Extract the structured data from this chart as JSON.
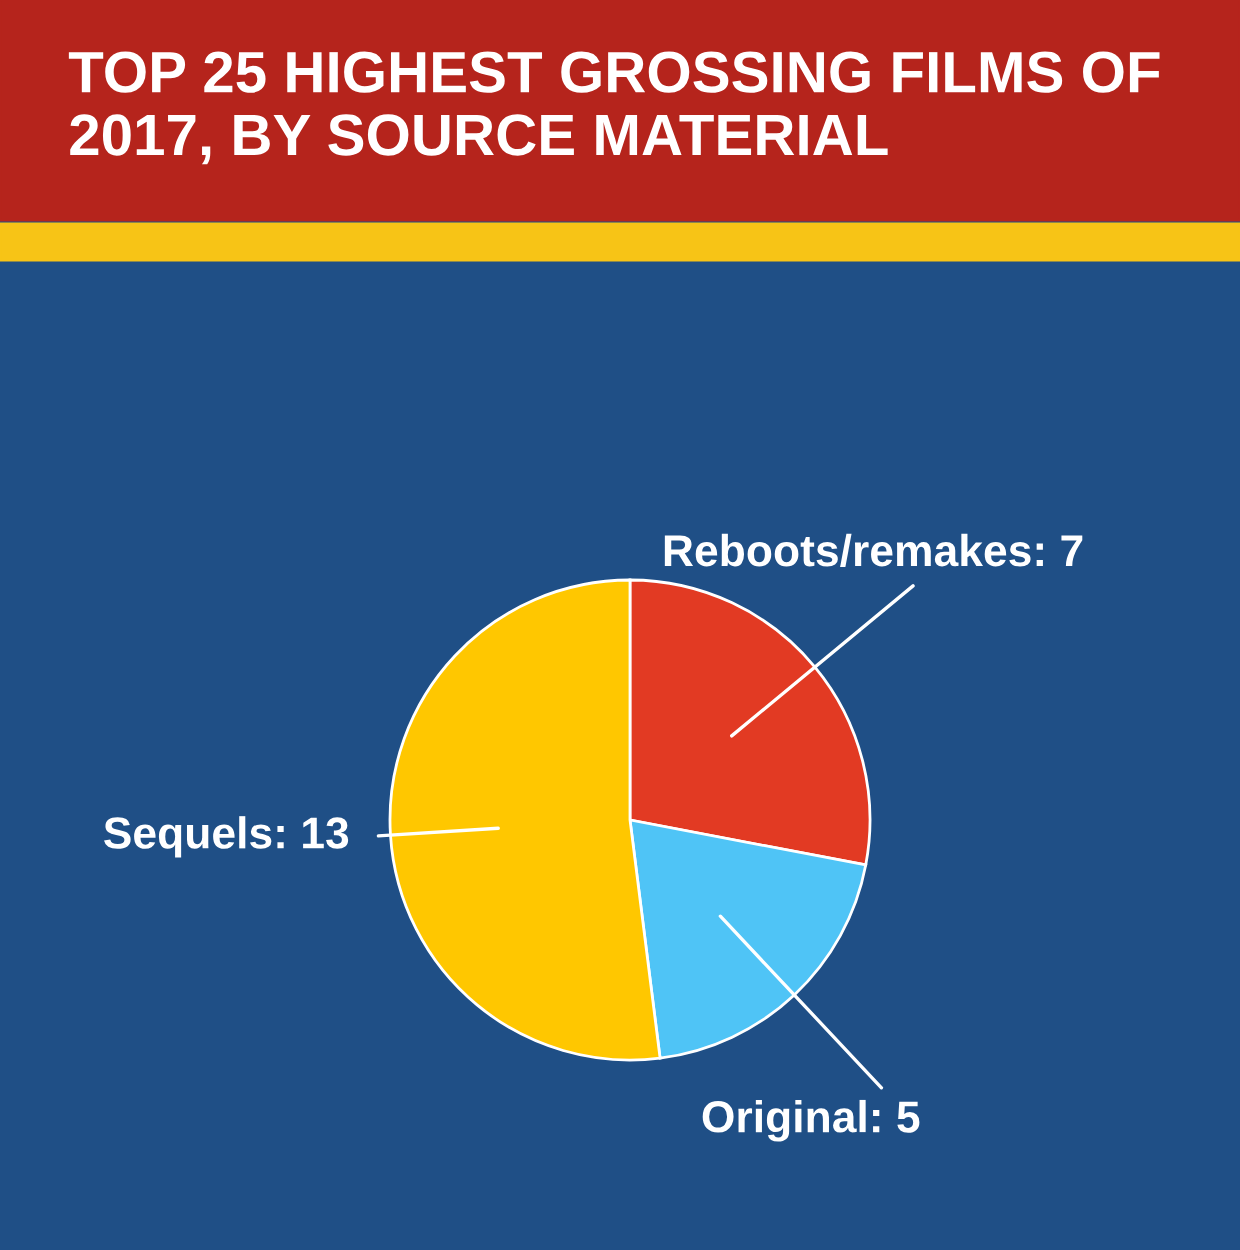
{
  "chart_data": {
    "type": "pie",
    "title": "TOP 25 HIGHEST GROSSING FILMS OF 2017, BY SOURCE MATERIAL",
    "categories": [
      "Reboots/remakes",
      "Original",
      "Sequels"
    ],
    "values": [
      7,
      5,
      13
    ],
    "colors": [
      "#e23a23",
      "#4fc4f6",
      "#ffc700"
    ],
    "value_labels": [
      ": 7",
      ": 5",
      ": 13"
    ]
  }
}
